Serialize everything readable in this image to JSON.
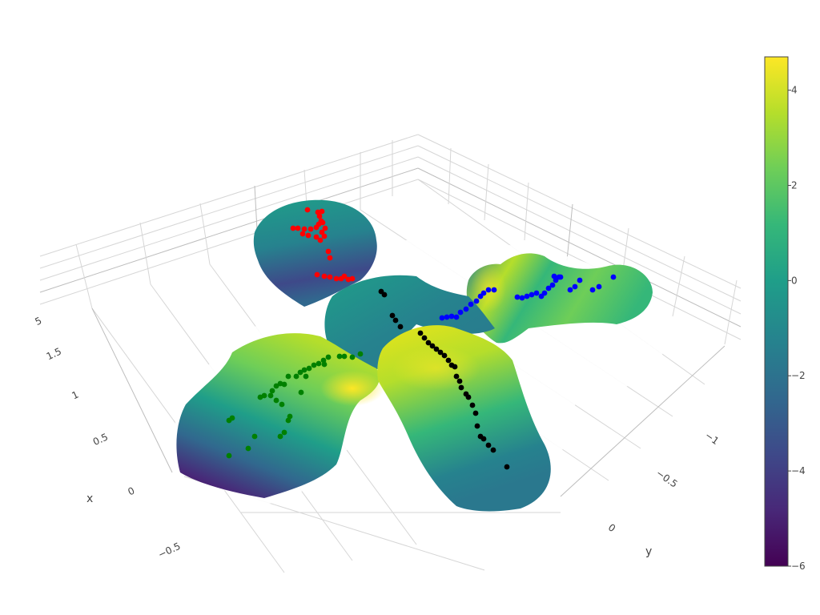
{
  "chart_data": {
    "type": "surface3d",
    "axes": {
      "x": {
        "title": "x",
        "tick_labels": [
          "−0.5",
          "0",
          "0.5",
          "1",
          "1.5",
          "5"
        ]
      },
      "y": {
        "title": "y",
        "tick_labels": [
          "0",
          "−0.5",
          "−1"
        ]
      },
      "z": {
        "title": ""
      }
    },
    "colorbar": {
      "colorscale": "viridis",
      "range": [
        -6,
        4.7
      ],
      "tick_labels": [
        "4",
        "2",
        "0",
        "−2",
        "−4",
        "−6"
      ],
      "tick_values": [
        4,
        2,
        0,
        -2,
        -4,
        -6
      ]
    },
    "surface_colors": {
      "viridis": [
        "#440154",
        "#482878",
        "#3e4989",
        "#31688e",
        "#26828e",
        "#1f9e89",
        "#35b779",
        "#6ece58",
        "#b5de2b",
        "#fde725"
      ]
    },
    "series": [
      {
        "color": "#ff0000"
      },
      {
        "color": "#0000ff"
      },
      {
        "color": "#008000"
      },
      {
        "color": "#000000"
      }
    ]
  }
}
